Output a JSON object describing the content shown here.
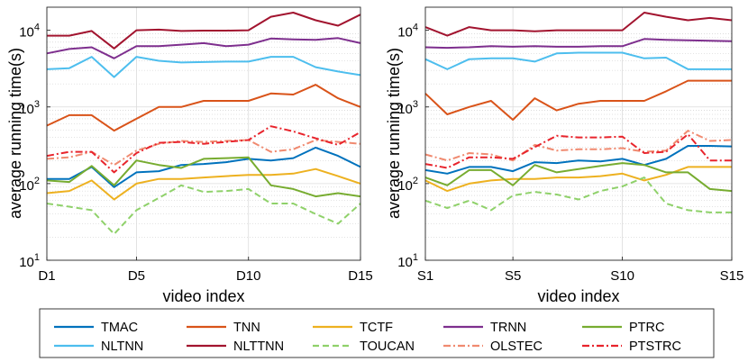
{
  "chart_data": [
    {
      "type": "line",
      "panel": "left",
      "x_tick_labels": [
        "D1",
        "D5",
        "D10",
        "D15"
      ],
      "x_tick_positions": [
        1,
        5,
        10,
        15
      ],
      "xlabel": "video index",
      "ylabel": "average running time(s)",
      "yscale": "log",
      "ylim": [
        10,
        20000
      ],
      "y_tick_labels": [
        "10^1",
        "10^2",
        "10^3",
        "10^4"
      ],
      "grid": true,
      "x": [
        1,
        2,
        3,
        4,
        5,
        6,
        7,
        8,
        9,
        10,
        11,
        12,
        13,
        14,
        15
      ],
      "series": [
        {
          "name": "TMAC",
          "values": [
            115,
            115,
            165,
            90,
            140,
            145,
            175,
            180,
            190,
            210,
            200,
            215,
            295,
            230,
            165
          ]
        },
        {
          "name": "TNN",
          "values": [
            570,
            780,
            780,
            490,
            700,
            1000,
            1000,
            1200,
            1200,
            1200,
            1500,
            1450,
            1950,
            1300,
            1000
          ]
        },
        {
          "name": "TCTF",
          "values": [
            75,
            80,
            110,
            62,
            100,
            115,
            115,
            120,
            125,
            130,
            130,
            135,
            155,
            125,
            100
          ]
        },
        {
          "name": "TRNN",
          "values": [
            5000,
            5700,
            6000,
            4300,
            6200,
            6200,
            6500,
            6800,
            6200,
            6500,
            7800,
            7600,
            7500,
            7900,
            6800
          ]
        },
        {
          "name": "PTRC",
          "values": [
            110,
            105,
            170,
            95,
            200,
            175,
            160,
            210,
            215,
            220,
            95,
            85,
            68,
            75,
            68
          ]
        },
        {
          "name": "NLTNN",
          "values": [
            3100,
            3200,
            4500,
            2450,
            4500,
            4000,
            3800,
            3850,
            3900,
            3900,
            4500,
            4500,
            3300,
            2900,
            2600
          ]
        },
        {
          "name": "NLTTNN",
          "values": [
            8500,
            8500,
            9800,
            5800,
            10000,
            10200,
            9800,
            9900,
            9900,
            10000,
            15000,
            17000,
            13500,
            11500,
            16000
          ]
        },
        {
          "name": "TOUCAN",
          "values": [
            55,
            50,
            45,
            22,
            45,
            65,
            95,
            78,
            80,
            85,
            55,
            55,
            40,
            30,
            55
          ]
        },
        {
          "name": "OLSTEC",
          "values": [
            210,
            220,
            260,
            175,
            270,
            330,
            360,
            350,
            360,
            370,
            260,
            280,
            370,
            350,
            330
          ]
        },
        {
          "name": "PTSTRC",
          "values": [
            230,
            260,
            260,
            140,
            250,
            340,
            350,
            330,
            350,
            370,
            560,
            480,
            390,
            320,
            470
          ]
        }
      ]
    },
    {
      "type": "line",
      "panel": "right",
      "x_tick_labels": [
        "S1",
        "S5",
        "S10",
        "S15"
      ],
      "x_tick_positions": [
        1,
        5,
        10,
        15
      ],
      "xlabel": "video index",
      "ylabel": "average running time(s)",
      "yscale": "log",
      "ylim": [
        10,
        20000
      ],
      "y_tick_labels": [
        "10^1",
        "10^2",
        "10^3",
        "10^4"
      ],
      "grid": true,
      "x": [
        1,
        2,
        3,
        4,
        5,
        6,
        7,
        8,
        9,
        10,
        11,
        12,
        13,
        14,
        15
      ],
      "series": [
        {
          "name": "TMAC",
          "values": [
            150,
            135,
            165,
            165,
            145,
            190,
            185,
            200,
            195,
            210,
            175,
            210,
            310,
            310,
            305
          ]
        },
        {
          "name": "TNN",
          "values": [
            1500,
            800,
            1000,
            1200,
            680,
            1300,
            900,
            1100,
            1200,
            1200,
            1200,
            1600,
            2200,
            2200,
            2200
          ]
        },
        {
          "name": "TCTF",
          "values": [
            110,
            80,
            100,
            110,
            115,
            115,
            120,
            120,
            125,
            135,
            110,
            130,
            165,
            165,
            165
          ]
        },
        {
          "name": "TRNN",
          "values": [
            6000,
            5900,
            6000,
            6200,
            6100,
            6200,
            6100,
            6100,
            6200,
            6200,
            7700,
            7500,
            7400,
            7300,
            7200
          ]
        },
        {
          "name": "PTRC",
          "values": [
            120,
            95,
            150,
            150,
            95,
            175,
            140,
            155,
            170,
            185,
            175,
            140,
            140,
            85,
            80
          ]
        },
        {
          "name": "NLTNN",
          "values": [
            4200,
            3100,
            4200,
            4300,
            4300,
            3900,
            5000,
            5100,
            5100,
            5100,
            4300,
            4400,
            3100,
            3100,
            3100
          ]
        },
        {
          "name": "NLTTNN",
          "values": [
            11000,
            8500,
            11000,
            10000,
            10000,
            9700,
            10000,
            10000,
            10000,
            10000,
            17000,
            15000,
            13500,
            14500,
            13500
          ]
        },
        {
          "name": "TOUCAN",
          "values": [
            60,
            48,
            60,
            45,
            70,
            78,
            72,
            62,
            80,
            92,
            120,
            55,
            45,
            42,
            42
          ]
        },
        {
          "name": "OLSTEC",
          "values": [
            240,
            200,
            250,
            240,
            200,
            320,
            270,
            280,
            280,
            290,
            260,
            270,
            490,
            360,
            370
          ]
        },
        {
          "name": "PTSTRC",
          "values": [
            180,
            160,
            220,
            220,
            210,
            300,
            420,
            400,
            400,
            410,
            250,
            260,
            440,
            200,
            200
          ]
        }
      ]
    }
  ],
  "legend": {
    "placement": "bottom",
    "entries": [
      {
        "name": "TMAC",
        "color": "#0072BD",
        "dash": "solid"
      },
      {
        "name": "TNN",
        "color": "#D95319",
        "dash": "solid"
      },
      {
        "name": "TCTF",
        "color": "#EDB120",
        "dash": "solid"
      },
      {
        "name": "TRNN",
        "color": "#7E2F8E",
        "dash": "solid"
      },
      {
        "name": "PTRC",
        "color": "#77AC30",
        "dash": "solid"
      },
      {
        "name": "NLTNN",
        "color": "#4DBEEE",
        "dash": "solid"
      },
      {
        "name": "NLTTNN",
        "color": "#A2142F",
        "dash": "solid"
      },
      {
        "name": "TOUCAN",
        "color": "#8FD16A",
        "dash": "dashed"
      },
      {
        "name": "OLSTEC",
        "color": "#F08A70",
        "dash": "dashdot"
      },
      {
        "name": "PTSTRC",
        "color": "#E8242C",
        "dash": "dashdot"
      }
    ]
  }
}
